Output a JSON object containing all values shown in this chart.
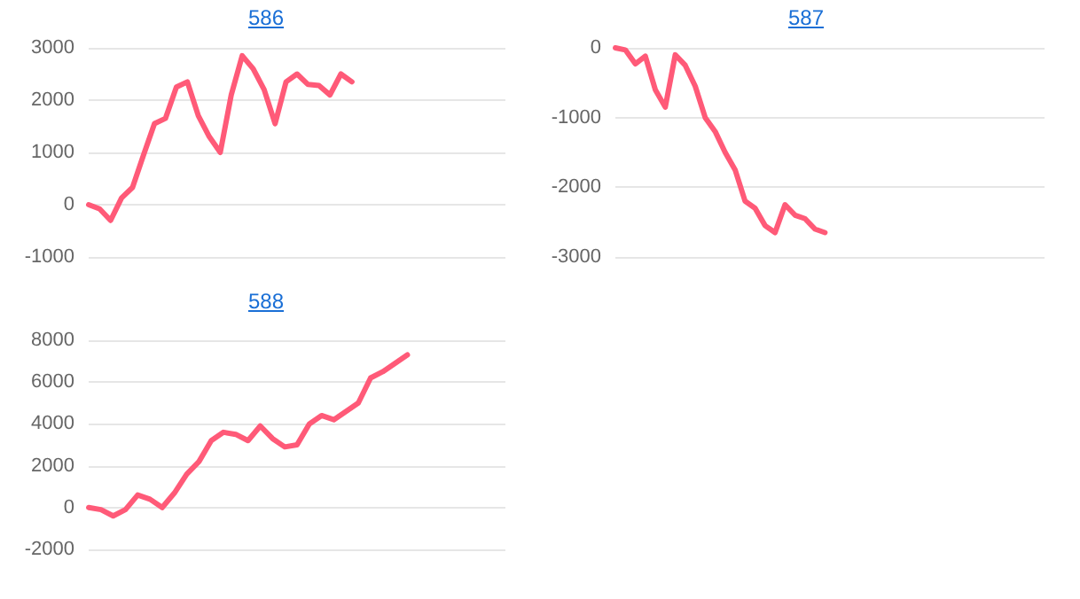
{
  "chart_data": [
    {
      "type": "line",
      "title": "586",
      "categories": [
        null,
        null,
        null,
        null,
        null,
        null,
        null,
        null,
        null,
        null,
        null,
        null,
        null,
        null,
        null,
        null,
        null,
        null,
        null,
        null,
        null,
        null,
        null,
        null,
        null,
        null,
        null,
        null,
        null,
        null,
        null,
        null,
        null,
        null,
        null,
        null,
        null,
        null,
        null
      ],
      "series": [
        {
          "color": "#ff5a78",
          "values": [
            0,
            -80,
            -300,
            130,
            330,
            950,
            1550,
            1650,
            2250,
            2350,
            1700,
            1300,
            1000,
            2100,
            2850,
            2600,
            2200,
            1550,
            2350,
            2500,
            2300,
            2280,
            2100,
            2500,
            2350,
            null,
            null,
            null,
            null,
            null,
            null,
            null,
            null,
            null,
            null,
            null,
            null,
            null,
            null
          ]
        }
      ],
      "ylim": [
        -1000,
        3000
      ],
      "yticks": [
        -1000,
        0,
        1000,
        2000,
        3000
      ],
      "grid": "y",
      "tick_labels": "y",
      "line_style": "solid"
    },
    {
      "type": "line",
      "title": "587",
      "categories": [
        null,
        null,
        null,
        null,
        null,
        null,
        null,
        null,
        null,
        null,
        null,
        null,
        null,
        null,
        null,
        null,
        null,
        null,
        null,
        null,
        null,
        null,
        null,
        null,
        null,
        null,
        null,
        null,
        null,
        null,
        null,
        null,
        null,
        null,
        null,
        null,
        null,
        null,
        null,
        null,
        null,
        null,
        null,
        null
      ],
      "series": [
        {
          "color": "#ff5a78",
          "values": [
            0,
            -30,
            -230,
            -120,
            -600,
            -850,
            -100,
            -250,
            -550,
            -1000,
            -1200,
            -1500,
            -1750,
            -2200,
            -2300,
            -2550,
            -2650,
            -2250,
            -2400,
            -2450,
            -2600,
            -2650,
            null,
            null,
            null,
            null,
            null,
            null,
            null,
            null,
            null,
            null,
            null,
            null,
            null,
            null,
            null,
            null,
            null,
            null,
            null,
            null,
            null,
            null
          ]
        }
      ],
      "ylim": [
        -3000,
        0
      ],
      "yticks": [
        -3000,
        -2000,
        -1000,
        0
      ],
      "grid": "y",
      "tick_labels": "y",
      "line_style": "solid"
    },
    {
      "type": "line",
      "title": "588",
      "categories": [
        null,
        null,
        null,
        null,
        null,
        null,
        null,
        null,
        null,
        null,
        null,
        null,
        null,
        null,
        null,
        null,
        null,
        null,
        null,
        null,
        null,
        null,
        null,
        null,
        null,
        null,
        null,
        null,
        null,
        null,
        null,
        null,
        null,
        null,
        null
      ],
      "series": [
        {
          "color": "#ff5a78",
          "values": [
            0,
            -100,
            -400,
            -100,
            600,
            400,
            0,
            700,
            1600,
            2200,
            3200,
            3600,
            3500,
            3200,
            3900,
            3300,
            2900,
            3000,
            4000,
            4400,
            4200,
            4600,
            5000,
            6200,
            6500,
            6900,
            7300,
            null,
            null,
            null,
            null,
            null,
            null,
            null,
            null
          ]
        }
      ],
      "ylim": [
        -2000,
        8000
      ],
      "yticks": [
        -2000,
        0,
        2000,
        4000,
        6000,
        8000
      ],
      "grid": "y",
      "tick_labels": "y",
      "line_style": "solid"
    }
  ]
}
